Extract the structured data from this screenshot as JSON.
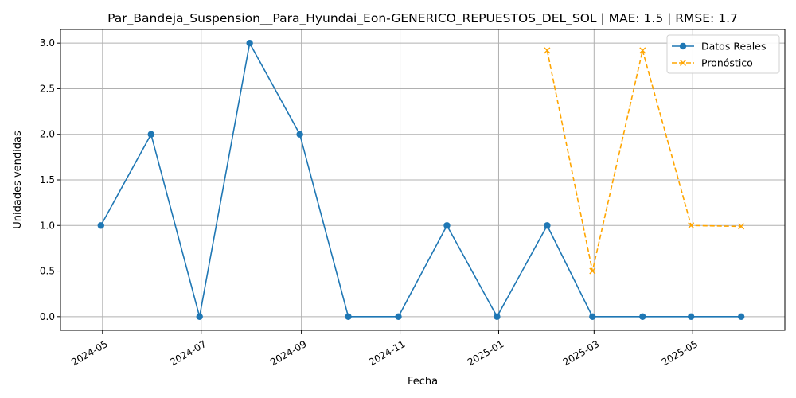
{
  "chart_data": {
    "type": "line",
    "title": "Par_Bandeja_Suspension__Para_Hyundai_Eon-GENERICO_REPUESTOS_DEL_SOL | MAE: 1.5 | RMSE: 1.7",
    "xlabel": "Fecha",
    "ylabel": "Unidades vendidas",
    "ylim": [
      -0.15,
      3.15
    ],
    "xlim": [
      "2024-04-05",
      "2025-06-27"
    ],
    "grid": true,
    "legend_position": "top-right",
    "x_ticks": [
      {
        "date": "2024-05-01",
        "label": "2024-05"
      },
      {
        "date": "2024-07-01",
        "label": "2024-07"
      },
      {
        "date": "2024-09-01",
        "label": "2024-09"
      },
      {
        "date": "2024-11-01",
        "label": "2024-11"
      },
      {
        "date": "2025-01-01",
        "label": "2025-01"
      },
      {
        "date": "2025-03-01",
        "label": "2025-03"
      },
      {
        "date": "2025-05-01",
        "label": "2025-05"
      }
    ],
    "y_ticks": [
      {
        "value": 0.0,
        "label": "0.0"
      },
      {
        "value": 0.5,
        "label": "0.5"
      },
      {
        "value": 1.0,
        "label": "1.0"
      },
      {
        "value": 1.5,
        "label": "1.5"
      },
      {
        "value": 2.0,
        "label": "2.0"
      },
      {
        "value": 2.5,
        "label": "2.5"
      },
      {
        "value": 3.0,
        "label": "3.0"
      }
    ],
    "series": [
      {
        "name": "Datos Reales",
        "color": "#1f77b4",
        "line_style": "solid",
        "marker": "circle",
        "x": [
          "2024-04-30",
          "2024-05-31",
          "2024-06-30",
          "2024-07-31",
          "2024-08-31",
          "2024-09-30",
          "2024-10-31",
          "2024-11-30",
          "2024-12-31",
          "2025-01-31",
          "2025-02-28",
          "2025-03-31",
          "2025-04-30",
          "2025-05-31"
        ],
        "values": [
          1,
          2,
          0,
          3,
          2,
          0,
          0,
          1,
          0,
          1,
          0,
          0,
          0,
          0
        ]
      },
      {
        "name": "Pronóstico",
        "color": "#ffa500",
        "line_style": "dashed",
        "marker": "x",
        "x": [
          "2025-01-31",
          "2025-02-28",
          "2025-03-31",
          "2025-04-30",
          "2025-05-31"
        ],
        "values": [
          2.92,
          0.5,
          2.92,
          1.0,
          0.99
        ]
      }
    ]
  }
}
